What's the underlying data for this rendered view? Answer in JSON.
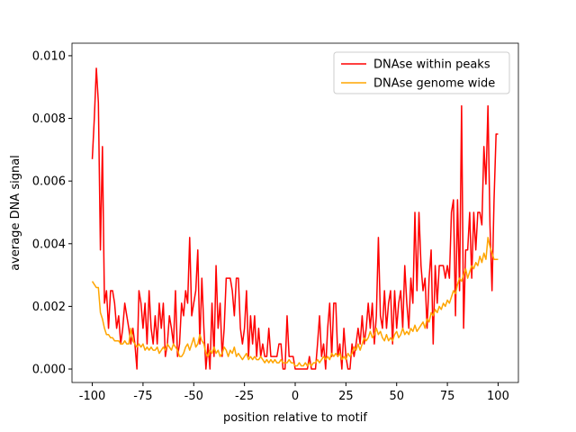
{
  "chart_data": {
    "type": "line",
    "x_label": "position relative to motif",
    "y_label": "average DNA signal",
    "x": [
      -100,
      -99,
      -98,
      -97,
      -96,
      -95,
      -94,
      -93,
      -92,
      -91,
      -90,
      -89,
      -88,
      -87,
      -86,
      -85,
      -84,
      -83,
      -82,
      -81,
      -80,
      -79,
      -78,
      -77,
      -76,
      -75,
      -74,
      -73,
      -72,
      -71,
      -70,
      -69,
      -68,
      -67,
      -66,
      -65,
      -64,
      -63,
      -62,
      -61,
      -60,
      -59,
      -58,
      -57,
      -56,
      -55,
      -54,
      -53,
      -52,
      -51,
      -50,
      -49,
      -48,
      -47,
      -46,
      -45,
      -44,
      -43,
      -42,
      -41,
      -40,
      -39,
      -38,
      -37,
      -36,
      -35,
      -34,
      -33,
      -32,
      -31,
      -30,
      -29,
      -28,
      -27,
      -26,
      -25,
      -24,
      -23,
      -22,
      -21,
      -20,
      -19,
      -18,
      -17,
      -16,
      -15,
      -14,
      -13,
      -12,
      -11,
      -10,
      -9,
      -8,
      -7,
      -6,
      -5,
      -4,
      -3,
      -2,
      -1,
      0,
      1,
      2,
      3,
      4,
      5,
      6,
      7,
      8,
      9,
      10,
      11,
      12,
      13,
      14,
      15,
      16,
      17,
      18,
      19,
      20,
      21,
      22,
      23,
      24,
      25,
      26,
      27,
      28,
      29,
      30,
      31,
      32,
      33,
      34,
      35,
      36,
      37,
      38,
      39,
      40,
      41,
      42,
      43,
      44,
      45,
      46,
      47,
      48,
      49,
      50,
      51,
      52,
      53,
      54,
      55,
      56,
      57,
      58,
      59,
      60,
      61,
      62,
      63,
      64,
      65,
      66,
      67,
      68,
      69,
      70,
      71,
      72,
      73,
      74,
      75,
      76,
      77,
      78,
      79,
      80,
      81,
      82,
      83,
      84,
      85,
      86,
      87,
      88,
      89,
      90,
      91,
      92,
      93,
      94,
      95,
      96,
      97,
      98,
      99,
      100
    ],
    "series": [
      {
        "name": "DNAse within peaks",
        "color": "#ff0000",
        "values": [
          0.0067,
          0.008,
          0.0096,
          0.0085,
          0.0038,
          0.0071,
          0.0021,
          0.0025,
          0.0013,
          0.0025,
          0.0025,
          0.0021,
          0.0013,
          0.0017,
          0.0008,
          0.0013,
          0.0021,
          0.0017,
          0.0013,
          0.0008,
          0.0013,
          0.0008,
          0.0,
          0.0025,
          0.0021,
          0.0013,
          0.0021,
          0.0008,
          0.0025,
          0.0013,
          0.0008,
          0.0017,
          0.0008,
          0.0021,
          0.0013,
          0.0021,
          0.0004,
          0.0008,
          0.0017,
          0.0013,
          0.0008,
          0.0025,
          0.0004,
          0.0008,
          0.0021,
          0.0017,
          0.0025,
          0.0021,
          0.0042,
          0.0017,
          0.0021,
          0.0025,
          0.0038,
          0.0008,
          0.0029,
          0.0013,
          0.0,
          0.0008,
          0.0,
          0.0021,
          0.0004,
          0.0033,
          0.0013,
          0.0021,
          0.0004,
          0.0013,
          0.0029,
          0.0029,
          0.0029,
          0.0025,
          0.0017,
          0.0029,
          0.0029,
          0.0013,
          0.0008,
          0.0013,
          0.0025,
          0.0004,
          0.0017,
          0.0008,
          0.0017,
          0.0004,
          0.0013,
          0.0004,
          0.0008,
          0.0004,
          0.0004,
          0.0013,
          0.0004,
          0.0004,
          0.0004,
          0.0004,
          0.0008,
          0.0008,
          0.0,
          0.0,
          0.0017,
          0.0004,
          0.0004,
          0.0004,
          0.0,
          0.0,
          0.0,
          0.0,
          0.0,
          0.0,
          0.0,
          0.0004,
          0.0,
          0.0,
          0.0,
          0.0008,
          0.0017,
          0.0004,
          0.0008,
          0.0,
          0.0013,
          0.0021,
          0.0004,
          0.0021,
          0.0021,
          0.0004,
          0.0008,
          0.0,
          0.0013,
          0.0004,
          0.0,
          0.0,
          0.0008,
          0.0004,
          0.0008,
          0.0013,
          0.0008,
          0.0017,
          0.0008,
          0.0013,
          0.0021,
          0.0013,
          0.0021,
          0.0008,
          0.0017,
          0.0042,
          0.0017,
          0.0013,
          0.0025,
          0.0013,
          0.0021,
          0.0025,
          0.0008,
          0.0025,
          0.0013,
          0.0021,
          0.0025,
          0.0013,
          0.0033,
          0.0021,
          0.0013,
          0.0029,
          0.0021,
          0.005,
          0.0025,
          0.005,
          0.0033,
          0.0025,
          0.0029,
          0.0013,
          0.0029,
          0.0038,
          0.0008,
          0.0033,
          0.0021,
          0.0033,
          0.0033,
          0.0033,
          0.0029,
          0.0033,
          0.0029,
          0.005,
          0.0054,
          0.0017,
          0.0054,
          0.0025,
          0.0084,
          0.0013,
          0.0038,
          0.0038,
          0.005,
          0.0029,
          0.005,
          0.0038,
          0.005,
          0.005,
          0.0046,
          0.0071,
          0.0059,
          0.0084,
          0.0046,
          0.0025,
          0.0054,
          0.0075,
          0.0075
        ]
      },
      {
        "name": "DNAse genome wide",
        "color": "#ffa500",
        "values": [
          0.0028,
          0.0027,
          0.0026,
          0.0026,
          0.0018,
          0.0016,
          0.0013,
          0.0011,
          0.0011,
          0.001,
          0.001,
          0.0009,
          0.0009,
          0.0009,
          0.0008,
          0.0008,
          0.0009,
          0.0008,
          0.0008,
          0.0013,
          0.0009,
          0.0008,
          0.0007,
          0.0008,
          0.0007,
          0.0008,
          0.0006,
          0.0007,
          0.0006,
          0.0007,
          0.0006,
          0.0006,
          0.0007,
          0.0005,
          0.0006,
          0.0007,
          0.0006,
          0.0008,
          0.0007,
          0.0006,
          0.0008,
          0.0007,
          0.0006,
          0.0004,
          0.0004,
          0.0005,
          0.0007,
          0.0008,
          0.0006,
          0.0008,
          0.001,
          0.0007,
          0.0008,
          0.0011,
          0.0009,
          0.0008,
          0.0005,
          0.0004,
          0.0006,
          0.0005,
          0.0007,
          0.0005,
          0.0006,
          0.0004,
          0.0005,
          0.0007,
          0.0006,
          0.0004,
          0.0006,
          0.0005,
          0.0007,
          0.0004,
          0.0005,
          0.0004,
          0.0003,
          0.0004,
          0.0005,
          0.0003,
          0.0004,
          0.0003,
          0.0004,
          0.0003,
          0.0003,
          0.0004,
          0.0003,
          0.0002,
          0.0003,
          0.0002,
          0.0003,
          0.0002,
          0.0003,
          0.0002,
          0.0002,
          0.0003,
          0.0002,
          0.0002,
          0.0002,
          0.0003,
          0.0002,
          0.0002,
          0.0001,
          0.0001,
          0.0002,
          0.0001,
          0.0001,
          0.0002,
          0.0001,
          0.0002,
          0.0001,
          0.0002,
          0.0002,
          0.0003,
          0.0002,
          0.0003,
          0.0004,
          0.0003,
          0.0004,
          0.0003,
          0.0005,
          0.0004,
          0.0005,
          0.0004,
          0.0005,
          0.0003,
          0.0004,
          0.0003,
          0.0005,
          0.0004,
          0.0005,
          0.0007,
          0.0006,
          0.0008,
          0.0006,
          0.0008,
          0.001,
          0.0009,
          0.001,
          0.0012,
          0.001,
          0.0011,
          0.0013,
          0.0011,
          0.0012,
          0.001,
          0.0009,
          0.0011,
          0.0009,
          0.001,
          0.0009,
          0.0011,
          0.0012,
          0.001,
          0.0011,
          0.0013,
          0.0011,
          0.0012,
          0.0011,
          0.0013,
          0.0012,
          0.0014,
          0.0012,
          0.0013,
          0.0014,
          0.0015,
          0.0013,
          0.0016,
          0.0015,
          0.0018,
          0.0017,
          0.0019,
          0.0018,
          0.002,
          0.0019,
          0.0021,
          0.002,
          0.0022,
          0.0021,
          0.0023,
          0.0025,
          0.0024,
          0.0027,
          0.0029,
          0.0028,
          0.003,
          0.0032,
          0.0029,
          0.0031,
          0.0033,
          0.0032,
          0.0034,
          0.0033,
          0.0036,
          0.0034,
          0.0037,
          0.0035,
          0.0042,
          0.0039,
          0.0037,
          0.0035,
          0.0035,
          0.0035
        ]
      }
    ],
    "xlim": [
      -110,
      110
    ],
    "xticks": [
      -100,
      -75,
      -50,
      -25,
      0,
      25,
      50,
      75,
      100
    ],
    "ylim": [
      -0.00043,
      0.0104
    ],
    "yticks": [
      {
        "value": 0,
        "label": "0.000"
      },
      {
        "value": 0.002,
        "label": "0.002"
      },
      {
        "value": 0.004,
        "label": "0.004"
      },
      {
        "value": 0.006,
        "label": "0.006"
      },
      {
        "value": 0.008,
        "label": "0.008"
      },
      {
        "value": 0.01,
        "label": "0.010"
      }
    ],
    "legend": "upper right",
    "grid": false
  }
}
